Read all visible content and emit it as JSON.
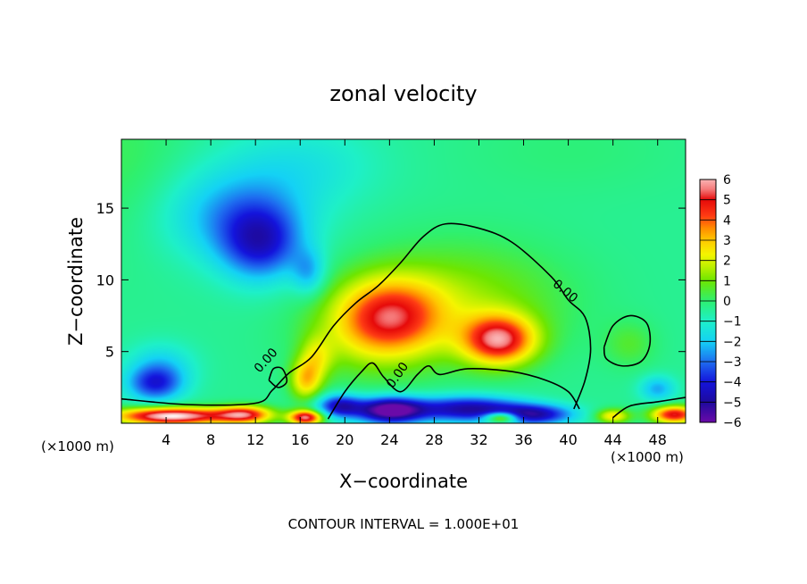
{
  "chart_data": {
    "type": "heatmap",
    "title": "zonal velocity",
    "xlabel": "X−coordinate",
    "ylabel": "Z−coordinate",
    "x_units": "(×1000 m)",
    "x_units_right": "(×1000 m)",
    "xlim": [
      0,
      50.5
    ],
    "ylim": [
      0,
      19.8
    ],
    "x_ticks": [
      4,
      8,
      12,
      16,
      20,
      24,
      28,
      32,
      36,
      40,
      44,
      48
    ],
    "y_ticks": [
      5,
      10,
      15
    ],
    "footer": "CONTOUR INTERVAL = 1.000E+01",
    "contour_label": "0.00",
    "colorbar": {
      "ticks": [
        6,
        5,
        4,
        3,
        2,
        1,
        0,
        -1,
        -2,
        -3,
        -4,
        -5,
        -6
      ],
      "tick_labels": [
        "6",
        "5",
        "4",
        "3",
        "2",
        "1",
        "0",
        "−1",
        "−2",
        "−3",
        "−4",
        "−5",
        "−6"
      ],
      "range": [
        -6,
        6
      ]
    },
    "colorscale": [
      {
        "v": -6,
        "c": "#6a0aa8"
      },
      {
        "v": -5,
        "c": "#1e0a9e"
      },
      {
        "v": -4,
        "c": "#1414dc"
      },
      {
        "v": -3,
        "c": "#1e6ef0"
      },
      {
        "v": -2,
        "c": "#14d2f5"
      },
      {
        "v": -1,
        "c": "#1ef0c8"
      },
      {
        "v": 0,
        "c": "#2ef070"
      },
      {
        "v": 1,
        "c": "#6ee600"
      },
      {
        "v": 1.7,
        "c": "#bef000"
      },
      {
        "v": 2.3,
        "c": "#f5f500"
      },
      {
        "v": 3,
        "c": "#ffc800"
      },
      {
        "v": 3.6,
        "c": "#ff8c00"
      },
      {
        "v": 4.2,
        "c": "#ff3c14"
      },
      {
        "v": 5,
        "c": "#e60a0a"
      },
      {
        "v": 5.5,
        "c": "#f57878"
      },
      {
        "v": 6,
        "c": "#fab4b4"
      },
      {
        "v": 6.6,
        "c": "#ffffff"
      }
    ],
    "features": [
      {
        "x": 24,
        "y": 7.5,
        "sx": 4.6,
        "sy": 2.6,
        "a": 4.0
      },
      {
        "x": 33.8,
        "y": 5.8,
        "sx": 3.2,
        "sy": 1.7,
        "a": 5.4
      },
      {
        "x": 30,
        "y": 8.5,
        "sx": 9.5,
        "sy": 4.0,
        "a": 1.7
      },
      {
        "x": 22,
        "y": 6.0,
        "sx": 6.0,
        "sy": 3.0,
        "a": 1.2
      },
      {
        "x": 16.5,
        "y": 3.0,
        "sx": 1.4,
        "sy": 1.4,
        "a": 3.0
      },
      {
        "x": 17.5,
        "y": 4.6,
        "sx": 1.5,
        "sy": 1.5,
        "a": 1.8
      },
      {
        "x": 45.5,
        "y": 5.5,
        "sx": 2.3,
        "sy": 1.6,
        "a": 0.9
      },
      {
        "x": 12.5,
        "y": 12.5,
        "sx": 3.6,
        "sy": 2.6,
        "a": -3.2
      },
      {
        "x": 16.8,
        "y": 10.5,
        "sx": 1.5,
        "sy": 1.6,
        "a": -1.8
      },
      {
        "x": 10,
        "y": 14.5,
        "sx": 6.5,
        "sy": 3.2,
        "a": -2.0
      },
      {
        "x": 16,
        "y": 18,
        "sx": 7.0,
        "sy": 3.0,
        "a": -1.0
      },
      {
        "x": 3,
        "y": 2.7,
        "sx": 2.5,
        "sy": 1.2,
        "a": -3.0
      },
      {
        "x": 3.5,
        "y": 4.0,
        "sx": 3.0,
        "sy": 1.6,
        "a": -1.5
      },
      {
        "x": 48,
        "y": 2.4,
        "sx": 1.6,
        "sy": 0.9,
        "a": -2.0
      },
      {
        "x": 24,
        "y": 0.9,
        "sx": 3.0,
        "sy": 0.9,
        "a": -6.0
      },
      {
        "x": 31,
        "y": 1.0,
        "sx": 5.0,
        "sy": 0.9,
        "a": -4.5
      },
      {
        "x": 37,
        "y": 0.6,
        "sx": 3.5,
        "sy": 0.7,
        "a": -4.0
      },
      {
        "x": 19.5,
        "y": 1.2,
        "sx": 2.0,
        "sy": 0.8,
        "a": -4.0
      },
      {
        "x": 4.5,
        "y": 0.5,
        "sx": 5.0,
        "sy": 0.6,
        "a": 7.0
      },
      {
        "x": 11,
        "y": 0.6,
        "sx": 2.5,
        "sy": 0.6,
        "a": 5.0
      },
      {
        "x": 16.5,
        "y": 0.4,
        "sx": 1.5,
        "sy": 0.5,
        "a": 6.0
      },
      {
        "x": 34,
        "y": 0.4,
        "sx": 1.5,
        "sy": 0.4,
        "a": 4.5
      },
      {
        "x": 49.5,
        "y": 0.6,
        "sx": 2.0,
        "sy": 0.6,
        "a": 5.5
      },
      {
        "x": 44,
        "y": 0.5,
        "sx": 1.5,
        "sy": 0.5,
        "a": 3.0
      },
      {
        "x": 40,
        "y": 19,
        "sx": 10,
        "sy": 3,
        "a": 0.3
      },
      {
        "x": 0,
        "y": 18,
        "sx": 6,
        "sy": 6,
        "a": 0.6
      }
    ],
    "base_value": -0.4,
    "contours": [
      [
        [
          0,
          1.7
        ],
        [
          6,
          1.3
        ],
        [
          12,
          1.4
        ],
        [
          13.5,
          2.3
        ],
        [
          15,
          3.5
        ],
        [
          17,
          4.6
        ],
        [
          19,
          6.8
        ],
        [
          21,
          8.4
        ],
        [
          23,
          9.6
        ],
        [
          25,
          11.2
        ],
        [
          27,
          13.0
        ],
        [
          29,
          13.9
        ],
        [
          32,
          13.6
        ],
        [
          35,
          12.6
        ],
        [
          38.5,
          10.2
        ],
        [
          40,
          8.6
        ],
        [
          41.5,
          7.4
        ],
        [
          42,
          5.2
        ],
        [
          41.5,
          3.0
        ],
        [
          40.5,
          1.0
        ]
      ],
      [
        [
          18.5,
          0.3
        ],
        [
          20,
          2.2
        ],
        [
          21.5,
          3.6
        ],
        [
          22.5,
          4.2
        ],
        [
          23.5,
          3.2
        ],
        [
          25,
          2.2
        ],
        [
          26.5,
          3.4
        ],
        [
          27.5,
          4.0
        ],
        [
          28.5,
          3.4
        ],
        [
          31,
          3.8
        ],
        [
          35,
          3.6
        ],
        [
          38,
          3.0
        ],
        [
          40,
          2.2
        ],
        [
          41,
          1.0
        ]
      ],
      [
        [
          13.2,
          3.0
        ],
        [
          14,
          2.5
        ],
        [
          14.8,
          2.9
        ],
        [
          14.4,
          3.8
        ],
        [
          13.6,
          3.8
        ],
        [
          13.2,
          3.0
        ]
      ],
      [
        [
          43.2,
          5.3
        ],
        [
          44,
          6.8
        ],
        [
          45.5,
          7.5
        ],
        [
          47,
          7.0
        ],
        [
          47.3,
          5.5
        ],
        [
          46.5,
          4.3
        ],
        [
          44.8,
          4.0
        ],
        [
          43.4,
          4.5
        ],
        [
          43.2,
          5.3
        ]
      ],
      [
        [
          44,
          0.4
        ],
        [
          45.5,
          1.2
        ],
        [
          48,
          1.5
        ],
        [
          50.5,
          1.8
        ]
      ]
    ],
    "contour_labels": [
      {
        "x": 39.5,
        "y": 9.0,
        "angle": 40
      },
      {
        "x": 13.2,
        "y": 4.2,
        "angle": -48
      },
      {
        "x": 25,
        "y": 3.2,
        "angle": -55
      }
    ]
  }
}
